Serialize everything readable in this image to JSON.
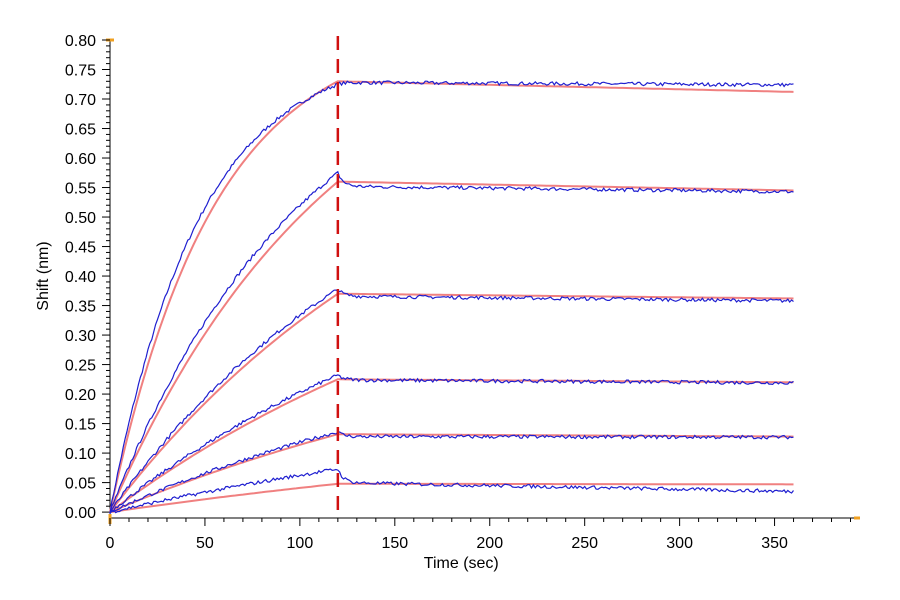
{
  "chart_data": {
    "type": "line",
    "title": "",
    "xlabel": "Time (sec)",
    "ylabel": "Shift (nm)",
    "xlim": [
      0,
      395
    ],
    "ylim": [
      -0.01,
      0.8
    ],
    "x_ticks": [
      0,
      50,
      100,
      150,
      200,
      250,
      300,
      350
    ],
    "y_ticks": [
      0.0,
      0.05,
      0.1,
      0.15,
      0.2,
      0.25,
      0.3,
      0.35,
      0.4,
      0.45,
      0.5,
      0.55,
      0.6,
      0.65,
      0.7,
      0.75,
      0.8
    ],
    "x_tick_labels": [
      "0",
      "50",
      "100",
      "150",
      "200",
      "250",
      "300",
      "350"
    ],
    "y_tick_labels": [
      "0.00",
      "0.05",
      "0.10",
      "0.15",
      "0.20",
      "0.25",
      "0.30",
      "0.35",
      "0.40",
      "0.45",
      "0.50",
      "0.55",
      "0.60",
      "0.65",
      "0.70",
      "0.75",
      "0.80"
    ],
    "dissociation_start": 120,
    "end_time": 360,
    "colors": {
      "data": "#1f1fd0",
      "fit": "#f08080",
      "marker": "#d01010",
      "axis_corner": "#f0a020"
    },
    "series": [
      {
        "assoc_tau": 55,
        "fit_peak": 0.73,
        "fit_end": 0.712,
        "data_peak": 0.725,
        "data_start_diss": 0.728,
        "data_end": 0.724
      },
      {
        "assoc_tau": 120,
        "fit_peak": 0.56,
        "fit_end": 0.545,
        "data_peak": 0.575,
        "data_start_diss": 0.552,
        "data_end": 0.543
      },
      {
        "assoc_tau": 180,
        "fit_peak": 0.37,
        "fit_end": 0.362,
        "data_peak": 0.378,
        "data_start_diss": 0.366,
        "data_end": 0.358
      },
      {
        "assoc_tau": 230,
        "fit_peak": 0.225,
        "fit_end": 0.22,
        "data_peak": 0.232,
        "data_start_diss": 0.224,
        "data_end": 0.219
      },
      {
        "assoc_tau": 260,
        "fit_peak": 0.132,
        "fit_end": 0.128,
        "data_peak": 0.136,
        "data_start_diss": 0.128,
        "data_end": 0.127
      },
      {
        "assoc_tau": 400,
        "fit_peak": 0.048,
        "fit_end": 0.047,
        "data_peak": 0.073,
        "data_start_diss": 0.05,
        "data_end": 0.035
      }
    ]
  }
}
